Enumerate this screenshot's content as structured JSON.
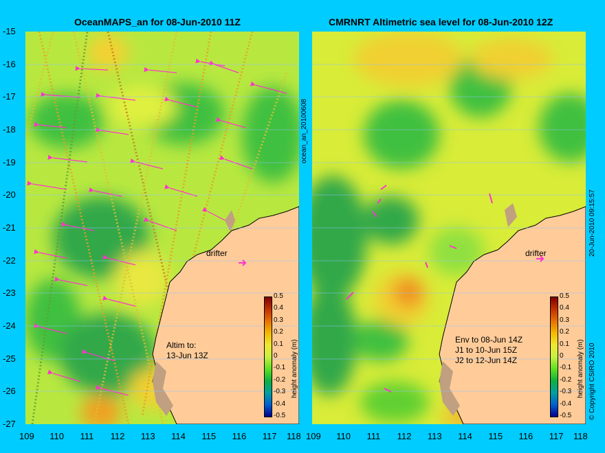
{
  "left_panel": {
    "title": "OceanMAPS_an for 08-Jun-2010 11Z",
    "side_label": "ocean_an_20100608",
    "annotation": "Altim to:\n13-Jun 13Z",
    "drifter_label": "drifter"
  },
  "right_panel": {
    "title": "CMRNRT Altimetric sea level  for 08-Jun-2010 12Z",
    "side_label": "20-Jun-2010 09:15:57",
    "copyright": "© Copyright CSIRO 2010",
    "annotation": "Env to 08-Jun 14Z\nJ1 to 10-Jun 15Z\nJ2 to 12-Jun 14Z",
    "drifter_label": "drifter"
  },
  "axes": {
    "x_ticks": [
      "109",
      "110",
      "111",
      "112",
      "113",
      "114",
      "115",
      "116",
      "117",
      "118"
    ],
    "y_ticks": [
      "-15",
      "-16",
      "-17",
      "-18",
      "-19",
      "-20",
      "-21",
      "-22",
      "-23",
      "-24",
      "-25",
      "-26",
      "-27"
    ]
  },
  "colorbar": {
    "label": "height anomaly (m)",
    "ticks": [
      "0.5",
      "0.4",
      "0.3",
      "0.2",
      "0.1",
      "0",
      "-0.1",
      "-0.2",
      "-0.3",
      "-0.4",
      "-0.5"
    ],
    "colors": [
      "#7f0000",
      "#c03000",
      "#e87000",
      "#f5b800",
      "#f0e830",
      "#c8f040",
      "#60e020",
      "#10b040",
      "#00a0a0",
      "#0060d0",
      "#00008f"
    ]
  },
  "colors": {
    "background": "#00ccff",
    "land": "#ffcc99",
    "coastline": "#000000",
    "island": "#c0a080",
    "vector": "#ff33cc"
  }
}
